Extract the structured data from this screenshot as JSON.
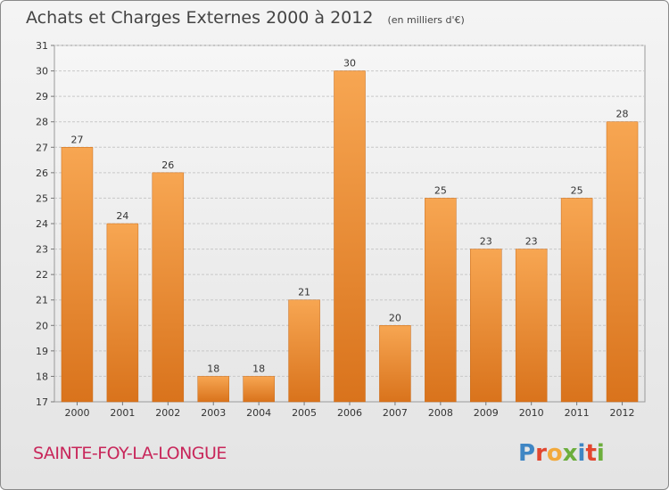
{
  "chart_data": {
    "type": "bar",
    "title": "Achats et Charges Externes 2000 à 2012",
    "subtitle": "(en milliers d'€)",
    "categories": [
      "2000",
      "2001",
      "2002",
      "2003",
      "2004",
      "2005",
      "2006",
      "2007",
      "2008",
      "2009",
      "2010",
      "2011",
      "2012"
    ],
    "values": [
      27,
      24,
      26,
      18,
      18,
      21,
      30,
      20,
      25,
      23,
      23,
      25,
      28
    ],
    "ylim": [
      17,
      31
    ],
    "yticks": [
      17,
      18,
      19,
      20,
      21,
      22,
      23,
      24,
      25,
      26,
      27,
      28,
      29,
      30,
      31
    ],
    "grid": true,
    "bar_color_top": "#f7a652",
    "bar_color_bottom": "#d9731c"
  },
  "footer": {
    "commune": "SAINTE-FOY-LA-LONGUE",
    "logo_letters": [
      {
        "ch": "P",
        "color": "#3f86c4"
      },
      {
        "ch": "r",
        "color": "#e2462f"
      },
      {
        "ch": "o",
        "color": "#f2a93b"
      },
      {
        "ch": "x",
        "color": "#6cae3c"
      },
      {
        "ch": "i",
        "color": "#3f86c4"
      },
      {
        "ch": "t",
        "color": "#e2462f"
      },
      {
        "ch": "i",
        "color": "#6cae3c"
      }
    ]
  }
}
